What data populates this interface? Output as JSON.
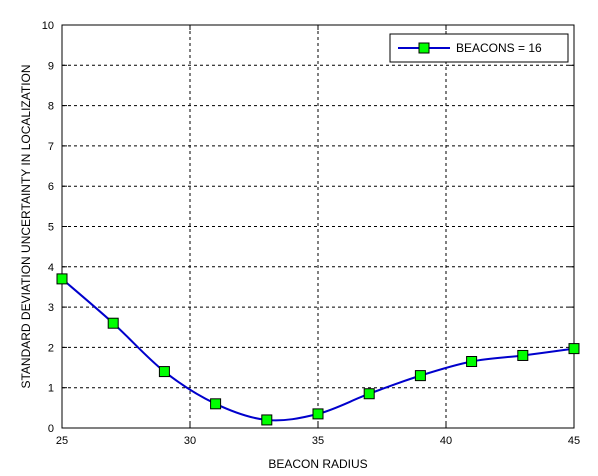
{
  "chart_data": {
    "type": "line",
    "xlabel": "BEACON RADIUS",
    "ylabel": "STANDARD DEVIATION UNCERTAINTY IN LOCALIZATION",
    "xlim": [
      25,
      45
    ],
    "ylim": [
      0,
      10
    ],
    "x_ticks": [
      25,
      30,
      35,
      40,
      45
    ],
    "y_ticks": [
      0,
      1,
      2,
      3,
      4,
      5,
      6,
      7,
      8,
      9,
      10
    ],
    "grid": true,
    "legend_position": "top-right",
    "series": [
      {
        "name": "BEACONS = 16",
        "color": "#0000cc",
        "marker": "square",
        "marker_color": "#00ff00",
        "x": [
          25,
          27,
          29,
          31,
          33,
          35,
          37,
          39,
          41,
          43,
          45
        ],
        "y": [
          3.7,
          2.6,
          1.4,
          0.6,
          0.2,
          0.35,
          0.85,
          1.3,
          1.65,
          1.8,
          1.97
        ]
      }
    ]
  }
}
